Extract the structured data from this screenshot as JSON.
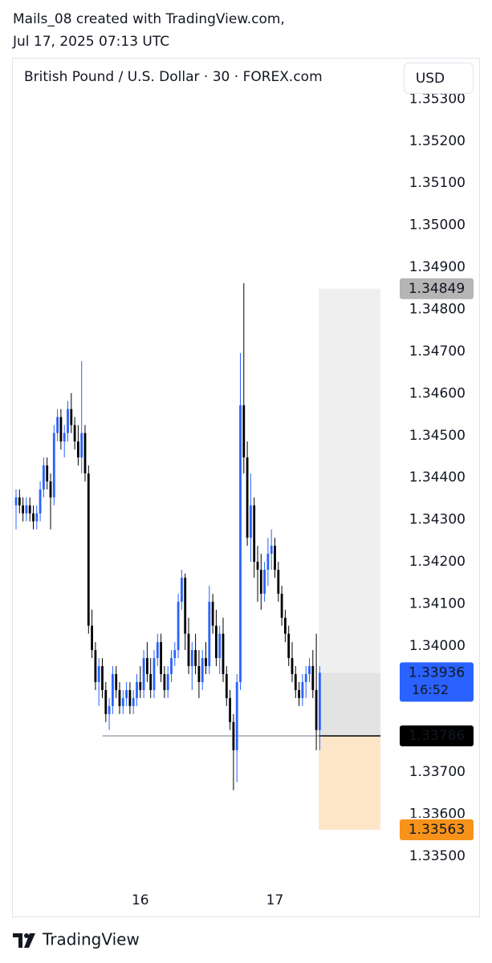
{
  "header": {
    "line1": "Mails_08 created with TradingView.com,",
    "line2": "Jul 17, 2025 07:13 UTC"
  },
  "footer": {
    "brand": "TradingView"
  },
  "chart_data": {
    "type": "candlestick",
    "title": "British Pound / U.S. Dollar · 30 · FOREX.com",
    "currency": "USD",
    "up_color": "#2962ff",
    "down_color": "#000000",
    "ylim": [
      1.33437,
      1.35398
    ],
    "yticks": [
      {
        "value": 1.335,
        "label": "1.33500"
      },
      {
        "value": 1.336,
        "label": "1.33600"
      },
      {
        "value": 1.337,
        "label": "1.33700"
      },
      {
        "value": 1.338,
        "label": "1.33800"
      },
      {
        "value": 1.339,
        "label": "1.33900"
      },
      {
        "value": 1.34,
        "label": "1.34000"
      },
      {
        "value": 1.341,
        "label": "1.34100"
      },
      {
        "value": 1.342,
        "label": "1.34200"
      },
      {
        "value": 1.343,
        "label": "1.34300"
      },
      {
        "value": 1.344,
        "label": "1.34400"
      },
      {
        "value": 1.345,
        "label": "1.34500"
      },
      {
        "value": 1.346,
        "label": "1.34600"
      },
      {
        "value": 1.347,
        "label": "1.34700"
      },
      {
        "value": 1.348,
        "label": "1.34800"
      },
      {
        "value": 1.349,
        "label": "1.34900"
      },
      {
        "value": 1.35,
        "label": "1.35000"
      },
      {
        "value": 1.351,
        "label": "1.35100"
      },
      {
        "value": 1.352,
        "label": "1.35200"
      },
      {
        "value": 1.353,
        "label": "1.35300"
      }
    ],
    "xticks": [
      {
        "value": 36,
        "label": "16"
      },
      {
        "value": 75,
        "label": "17"
      }
    ],
    "position": {
      "target": 1.34849,
      "entry": 1.33786,
      "stop": 1.33563,
      "color_target": "#efefef",
      "color_stop": "#fde6c8",
      "target_label_color": "#b5b5b5",
      "stop_label_color": "#f7931a"
    },
    "last": {
      "value": 1.33936,
      "countdown": "16:52",
      "color": "#2962ff"
    },
    "ohlc": [
      [
        1.34334,
        1.34372,
        1.34277,
        1.34353
      ],
      [
        1.34353,
        1.34372,
        1.34315,
        1.34334
      ],
      [
        1.34334,
        1.34353,
        1.34296,
        1.34315
      ],
      [
        1.34315,
        1.34353,
        1.34296,
        1.34334
      ],
      [
        1.34334,
        1.34353,
        1.34296,
        1.34315
      ],
      [
        1.34315,
        1.34334,
        1.34277,
        1.34296
      ],
      [
        1.34296,
        1.34334,
        1.34277,
        1.34315
      ],
      [
        1.34315,
        1.34391,
        1.34296,
        1.34372
      ],
      [
        1.34372,
        1.34448,
        1.34353,
        1.34429
      ],
      [
        1.34429,
        1.34448,
        1.34372,
        1.34391
      ],
      [
        1.34391,
        1.3441,
        1.34277,
        1.34353
      ],
      [
        1.34353,
        1.34525,
        1.34334,
        1.34506
      ],
      [
        1.34506,
        1.34563,
        1.34486,
        1.34544
      ],
      [
        1.34544,
        1.34563,
        1.34467,
        1.34486
      ],
      [
        1.34486,
        1.34525,
        1.34448,
        1.34506
      ],
      [
        1.34506,
        1.34582,
        1.34486,
        1.34563
      ],
      [
        1.34563,
        1.34601,
        1.34506,
        1.34525
      ],
      [
        1.34525,
        1.34544,
        1.34467,
        1.34486
      ],
      [
        1.34486,
        1.34525,
        1.34429,
        1.34448
      ],
      [
        1.34448,
        1.34677,
        1.3441,
        1.34506
      ],
      [
        1.34506,
        1.34525,
        1.34391,
        1.3441
      ],
      [
        1.3441,
        1.34429,
        1.34029,
        1.34048
      ],
      [
        1.34048,
        1.34086,
        1.33971,
        1.3399
      ],
      [
        1.3399,
        1.34009,
        1.33895,
        1.33914
      ],
      [
        1.33914,
        1.33971,
        1.33857,
        1.33952
      ],
      [
        1.33952,
        1.33971,
        1.33876,
        1.33895
      ],
      [
        1.33895,
        1.33914,
        1.33819,
        1.33838
      ],
      [
        1.33838,
        1.33876,
        1.338,
        1.33857
      ],
      [
        1.33857,
        1.33952,
        1.33838,
        1.33933
      ],
      [
        1.33933,
        1.33952,
        1.33876,
        1.33895
      ],
      [
        1.33895,
        1.33914,
        1.33838,
        1.33857
      ],
      [
        1.33857,
        1.33895,
        1.33838,
        1.33876
      ],
      [
        1.33876,
        1.33914,
        1.33857,
        1.33895
      ],
      [
        1.33895,
        1.33914,
        1.33838,
        1.33857
      ],
      [
        1.33857,
        1.33895,
        1.33838,
        1.33876
      ],
      [
        1.33876,
        1.33933,
        1.33857,
        1.33914
      ],
      [
        1.33914,
        1.33952,
        1.33876,
        1.33895
      ],
      [
        1.33895,
        1.3399,
        1.33876,
        1.33971
      ],
      [
        1.33971,
        1.34009,
        1.33914,
        1.33933
      ],
      [
        1.33933,
        1.33971,
        1.33876,
        1.33895
      ],
      [
        1.33895,
        1.3399,
        1.33876,
        1.33971
      ],
      [
        1.33971,
        1.34029,
        1.33952,
        1.34009
      ],
      [
        1.34009,
        1.34029,
        1.33914,
        1.33933
      ],
      [
        1.33933,
        1.33952,
        1.33876,
        1.33895
      ],
      [
        1.33895,
        1.33952,
        1.33876,
        1.33933
      ],
      [
        1.33933,
        1.3399,
        1.33914,
        1.33971
      ],
      [
        1.33971,
        1.34009,
        1.33952,
        1.3399
      ],
      [
        1.3399,
        1.34124,
        1.33971,
        1.34105
      ],
      [
        1.34105,
        1.34181,
        1.34086,
        1.34162
      ],
      [
        1.34162,
        1.34172,
        1.3399,
        1.34029
      ],
      [
        1.34029,
        1.34067,
        1.33933,
        1.33952
      ],
      [
        1.33952,
        1.34009,
        1.33895,
        1.3399
      ],
      [
        1.3399,
        1.34029,
        1.33933,
        1.33952
      ],
      [
        1.33952,
        1.3399,
        1.33876,
        1.33914
      ],
      [
        1.33914,
        1.3399,
        1.33895,
        1.33971
      ],
      [
        1.33971,
        1.34009,
        1.33933,
        1.33952
      ],
      [
        1.33952,
        1.34143,
        1.33933,
        1.34105
      ],
      [
        1.34105,
        1.34124,
        1.34029,
        1.34048
      ],
      [
        1.34048,
        1.34086,
        1.33952,
        1.33971
      ],
      [
        1.33971,
        1.34048,
        1.33933,
        1.34029
      ],
      [
        1.34029,
        1.34067,
        1.33914,
        1.33933
      ],
      [
        1.33933,
        1.33952,
        1.33857,
        1.33876
      ],
      [
        1.33876,
        1.33895,
        1.338,
        1.33819
      ],
      [
        1.33819,
        1.33838,
        1.33657,
        1.33752
      ],
      [
        1.33752,
        1.33933,
        1.33676,
        1.33914
      ],
      [
        1.33914,
        1.34696,
        1.33895,
        1.34572
      ],
      [
        1.34572,
        1.34862,
        1.3441,
        1.34448
      ],
      [
        1.34448,
        1.34486,
        1.34238,
        1.34257
      ],
      [
        1.34257,
        1.3441,
        1.342,
        1.34334
      ],
      [
        1.34334,
        1.34353,
        1.34162,
        1.342
      ],
      [
        1.342,
        1.34238,
        1.34105,
        1.34181
      ],
      [
        1.34181,
        1.34219,
        1.34086,
        1.34124
      ],
      [
        1.34124,
        1.342,
        1.34105,
        1.34181
      ],
      [
        1.34181,
        1.34257,
        1.34143,
        1.34219
      ],
      [
        1.34219,
        1.34277,
        1.34181,
        1.34238
      ],
      [
        1.34238,
        1.34257,
        1.34162,
        1.34181
      ],
      [
        1.34181,
        1.342,
        1.34105,
        1.34124
      ],
      [
        1.34124,
        1.34143,
        1.34048,
        1.34067
      ],
      [
        1.34067,
        1.34086,
        1.34009,
        1.34029
      ],
      [
        1.34029,
        1.34048,
        1.33952,
        1.33971
      ],
      [
        1.33971,
        1.34009,
        1.33914,
        1.33933
      ],
      [
        1.33933,
        1.33952,
        1.33876,
        1.33895
      ],
      [
        1.33895,
        1.33914,
        1.33857,
        1.33876
      ],
      [
        1.33876,
        1.33933,
        1.33857,
        1.33914
      ],
      [
        1.33914,
        1.33952,
        1.33876,
        1.33933
      ],
      [
        1.33933,
        1.33971,
        1.33914,
        1.33952
      ],
      [
        1.33952,
        1.3399,
        1.33876,
        1.33895
      ],
      [
        1.33895,
        1.34029,
        1.33752,
        1.338
      ],
      [
        1.338,
        1.33952,
        1.33752,
        1.33936
      ]
    ]
  }
}
